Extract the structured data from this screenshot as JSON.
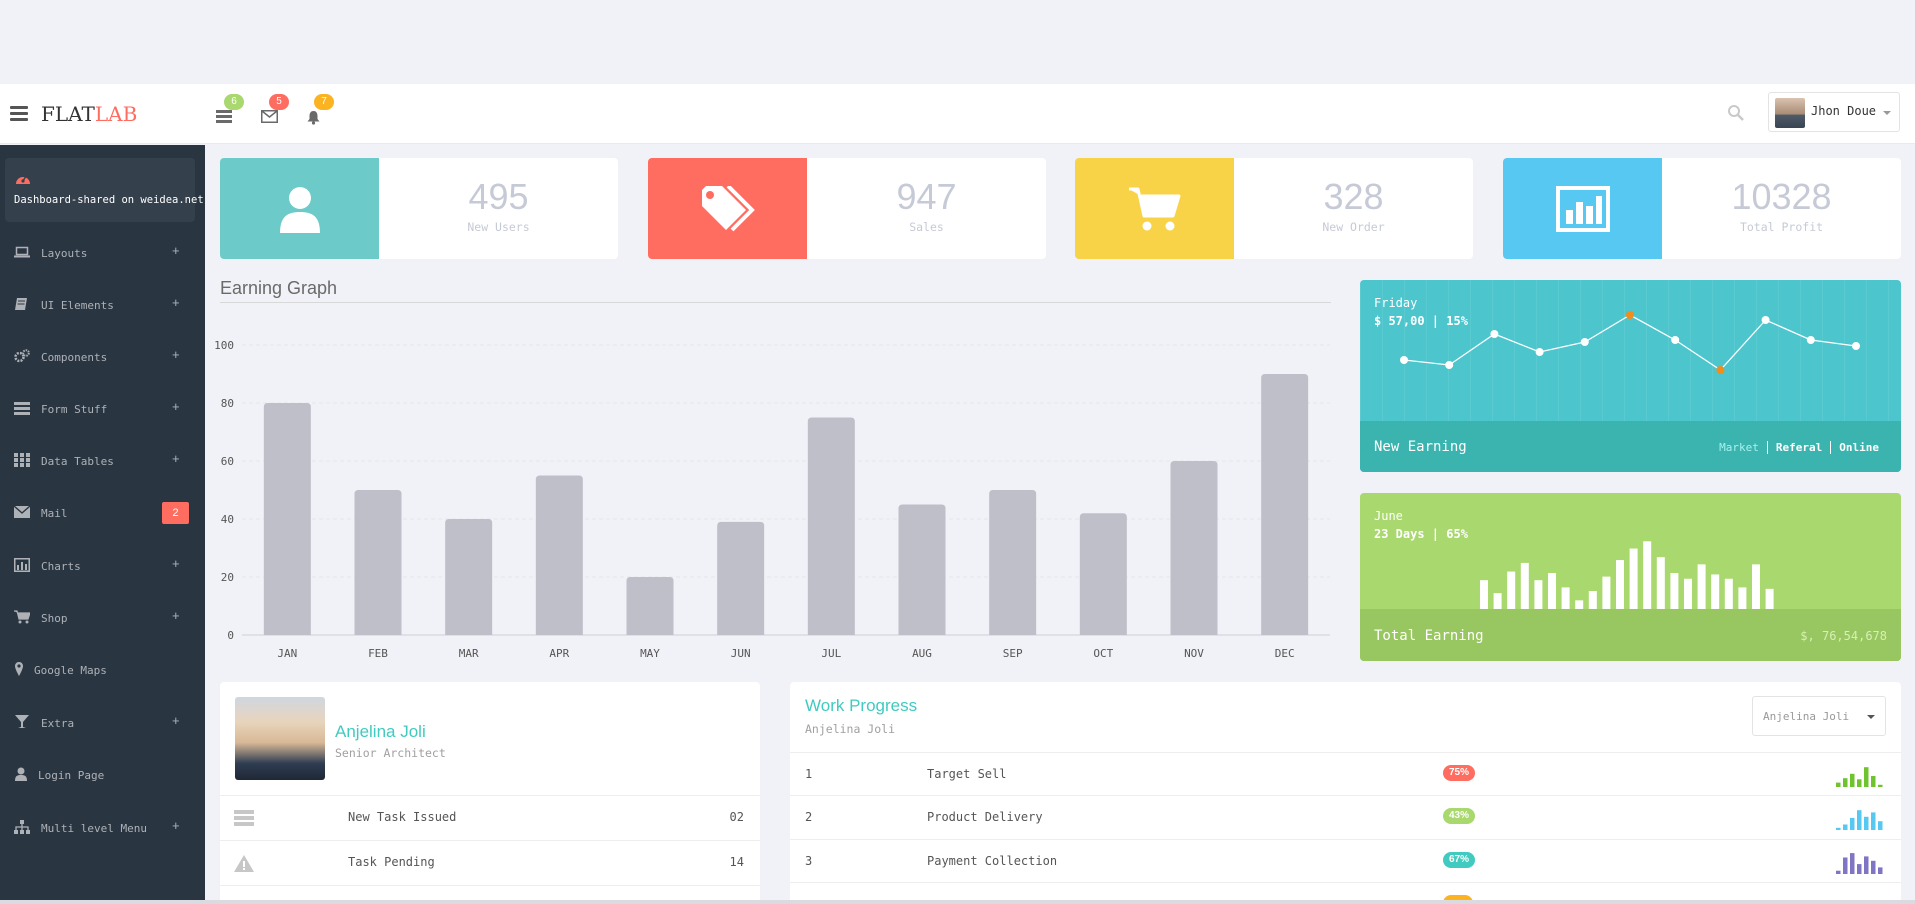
{
  "header": {
    "logo_main": "FLAT",
    "logo_accent": "LAB",
    "notifications": [
      {
        "icon": "tasks-icon",
        "count": "6",
        "color": "#a9d86e"
      },
      {
        "icon": "envelope-icon",
        "count": "5",
        "color": "#ff6c60"
      },
      {
        "icon": "bell-icon",
        "count": "7",
        "color": "#fcb322"
      }
    ],
    "user_name": "Jhon Doue"
  },
  "sidebar": {
    "active": {
      "label": "Dashboard-shared on weidea.net",
      "icon": "dashboard-icon"
    },
    "items": [
      {
        "label": "Layouts",
        "icon": "laptop-icon",
        "suffix": "+"
      },
      {
        "label": "UI Elements",
        "icon": "book-icon",
        "suffix": "+"
      },
      {
        "label": "Components",
        "icon": "cogs-icon",
        "suffix": "+"
      },
      {
        "label": "Form Stuff",
        "icon": "tasks-icon",
        "suffix": "+"
      },
      {
        "label": "Data Tables",
        "icon": "grid-icon",
        "suffix": "+"
      },
      {
        "label": "Mail",
        "icon": "envelope-icon",
        "badge": "2"
      },
      {
        "label": "Charts",
        "icon": "bar-chart-icon",
        "suffix": "+"
      },
      {
        "label": "Shop",
        "icon": "cart-icon",
        "suffix": "+"
      },
      {
        "label": "Google Maps",
        "icon": "map-marker-icon",
        "suffix": ""
      },
      {
        "label": "Extra",
        "icon": "glass-icon",
        "suffix": "+"
      },
      {
        "label": "Login Page",
        "icon": "user-icon",
        "suffix": ""
      },
      {
        "label": "Multi level Menu",
        "icon": "sitemap-icon",
        "suffix": "+"
      }
    ]
  },
  "stats": [
    {
      "value": "495",
      "label": "New Users",
      "color": "#6ccac9",
      "icon": "user-icon"
    },
    {
      "value": "947",
      "label": "Sales",
      "color": "#ff6c60",
      "icon": "tags-icon"
    },
    {
      "value": "328",
      "label": "New Order",
      "color": "#f8d347",
      "icon": "cart-icon"
    },
    {
      "value": "10328",
      "label": "Total Profit",
      "color": "#57c8f2",
      "icon": "bar-chart-icon"
    }
  ],
  "earning_graph": {
    "title": "Earning Graph"
  },
  "chart_data": {
    "type": "bar",
    "title": "Earning Graph",
    "categories": [
      "JAN",
      "FEB",
      "MAR",
      "APR",
      "MAY",
      "JUN",
      "JUL",
      "AUG",
      "SEP",
      "OCT",
      "NOV",
      "DEC"
    ],
    "values": [
      80,
      50,
      40,
      55,
      20,
      39,
      75,
      45,
      50,
      42,
      60,
      90
    ],
    "yticks": [
      0,
      20,
      40,
      60,
      80,
      100
    ],
    "ylim": [
      0,
      100
    ],
    "grid": true,
    "color": "#bfbfc9"
  },
  "new_earning": {
    "day": "Friday",
    "summary": "$ 57,00 | 15%",
    "footer": "New Earning",
    "tabs": [
      "Market",
      "Referal",
      "Online"
    ],
    "points": [
      50,
      45,
      76,
      58,
      68,
      95,
      70,
      40,
      90,
      70,
      64
    ],
    "highlight": [
      5,
      7
    ]
  },
  "total_earning": {
    "month": "June",
    "summary": "23 Days | 65%",
    "footer": "Total Earning",
    "amount": "$, 76,54,678",
    "bars": [
      40,
      22,
      52,
      64,
      40,
      50,
      30,
      12,
      25,
      45,
      68,
      84,
      94,
      72,
      50,
      42,
      62,
      48,
      42,
      30,
      62,
      28
    ]
  },
  "profile": {
    "name": "Anjelina Joli",
    "role": "Senior Architect",
    "rows": [
      {
        "icon": "tasks-icon",
        "label": "New Task Issued",
        "count": "02"
      },
      {
        "icon": "warning-icon",
        "label": "Task Pending",
        "count": "14"
      },
      {
        "icon": "inbox-icon",
        "label": "",
        "count": ""
      }
    ]
  },
  "work_progress": {
    "title": "Work Progress",
    "subtitle": "Anjelina Joli",
    "select_value": "Anjelina Joli",
    "rows": [
      {
        "num": "1",
        "task": "Target Sell",
        "pct": "75%",
        "color": "#ff6c60",
        "spark_color": "#6fc32d",
        "spark": [
          20,
          40,
          60,
          35,
          90,
          50,
          10
        ]
      },
      {
        "num": "2",
        "task": "Product Delivery",
        "pct": "43%",
        "color": "#a9d86e",
        "spark_color": "#57c8f2",
        "spark": [
          10,
          25,
          55,
          90,
          60,
          80,
          40
        ]
      },
      {
        "num": "3",
        "task": "Payment Collection",
        "pct": "67%",
        "color": "#41cac0",
        "spark_color": "#8075c4",
        "spark": [
          15,
          75,
          95,
          45,
          80,
          60,
          30
        ]
      },
      {
        "num": "",
        "task": "",
        "pct": "",
        "color": "#fcb322",
        "spark_color": "#fcb322",
        "spark": []
      }
    ]
  }
}
